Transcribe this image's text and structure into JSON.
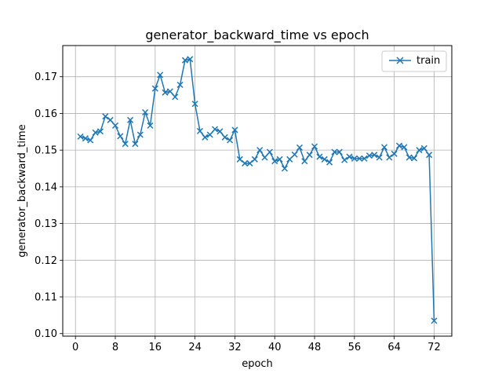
{
  "chart_data": {
    "type": "line",
    "title": "generator_backward_time vs epoch",
    "xlabel": "epoch",
    "ylabel": "generator_backward_time",
    "xlim": [
      -2.55,
      75.55
    ],
    "ylim": [
      0.0993,
      0.1785
    ],
    "xticks": [
      0,
      8,
      16,
      24,
      32,
      40,
      48,
      56,
      64,
      72
    ],
    "yticks": [
      0.1,
      0.11,
      0.12,
      0.13,
      0.14,
      0.15,
      0.16,
      0.17
    ],
    "ytick_labels": [
      "0.10",
      "0.11",
      "0.12",
      "0.13",
      "0.14",
      "0.15",
      "0.16",
      "0.17"
    ],
    "grid": true,
    "legend": "top-right",
    "series": [
      {
        "name": "train",
        "color": "#1f77b4",
        "marker": "x",
        "x": [
          1,
          2,
          3,
          4,
          5,
          6,
          7,
          8,
          9,
          10,
          11,
          12,
          13,
          14,
          15,
          16,
          17,
          18,
          19,
          20,
          21,
          22,
          23,
          24,
          25,
          26,
          27,
          28,
          29,
          30,
          31,
          32,
          33,
          34,
          35,
          36,
          37,
          38,
          39,
          40,
          41,
          42,
          43,
          44,
          45,
          46,
          47,
          48,
          49,
          50,
          51,
          52,
          53,
          54,
          55,
          56,
          57,
          58,
          59,
          60,
          61,
          62,
          63,
          64,
          65,
          66,
          67,
          68,
          69,
          70,
          71,
          72
        ],
        "y": [
          0.1537,
          0.1532,
          0.1527,
          0.1548,
          0.1551,
          0.1592,
          0.1582,
          0.1567,
          0.1538,
          0.1517,
          0.1582,
          0.1517,
          0.1542,
          0.1603,
          0.1567,
          0.1668,
          0.1705,
          0.1657,
          0.166,
          0.1645,
          0.1678,
          0.1745,
          0.1748,
          0.1626,
          0.1552,
          0.1535,
          0.1542,
          0.1557,
          0.1551,
          0.1535,
          0.1527,
          0.1555,
          0.1475,
          0.1464,
          0.1464,
          0.1475,
          0.15,
          0.148,
          0.1495,
          0.147,
          0.1475,
          0.145,
          0.1475,
          0.1488,
          0.1507,
          0.147,
          0.1487,
          0.151,
          0.1482,
          0.1475,
          0.1467,
          0.1495,
          0.1495,
          0.1473,
          0.1482,
          0.1477,
          0.1477,
          0.1477,
          0.1485,
          0.1487,
          0.148,
          0.1508,
          0.148,
          0.149,
          0.1512,
          0.1508,
          0.148,
          0.1478,
          0.15,
          0.1505,
          0.1487,
          0.1035
        ]
      }
    ]
  }
}
